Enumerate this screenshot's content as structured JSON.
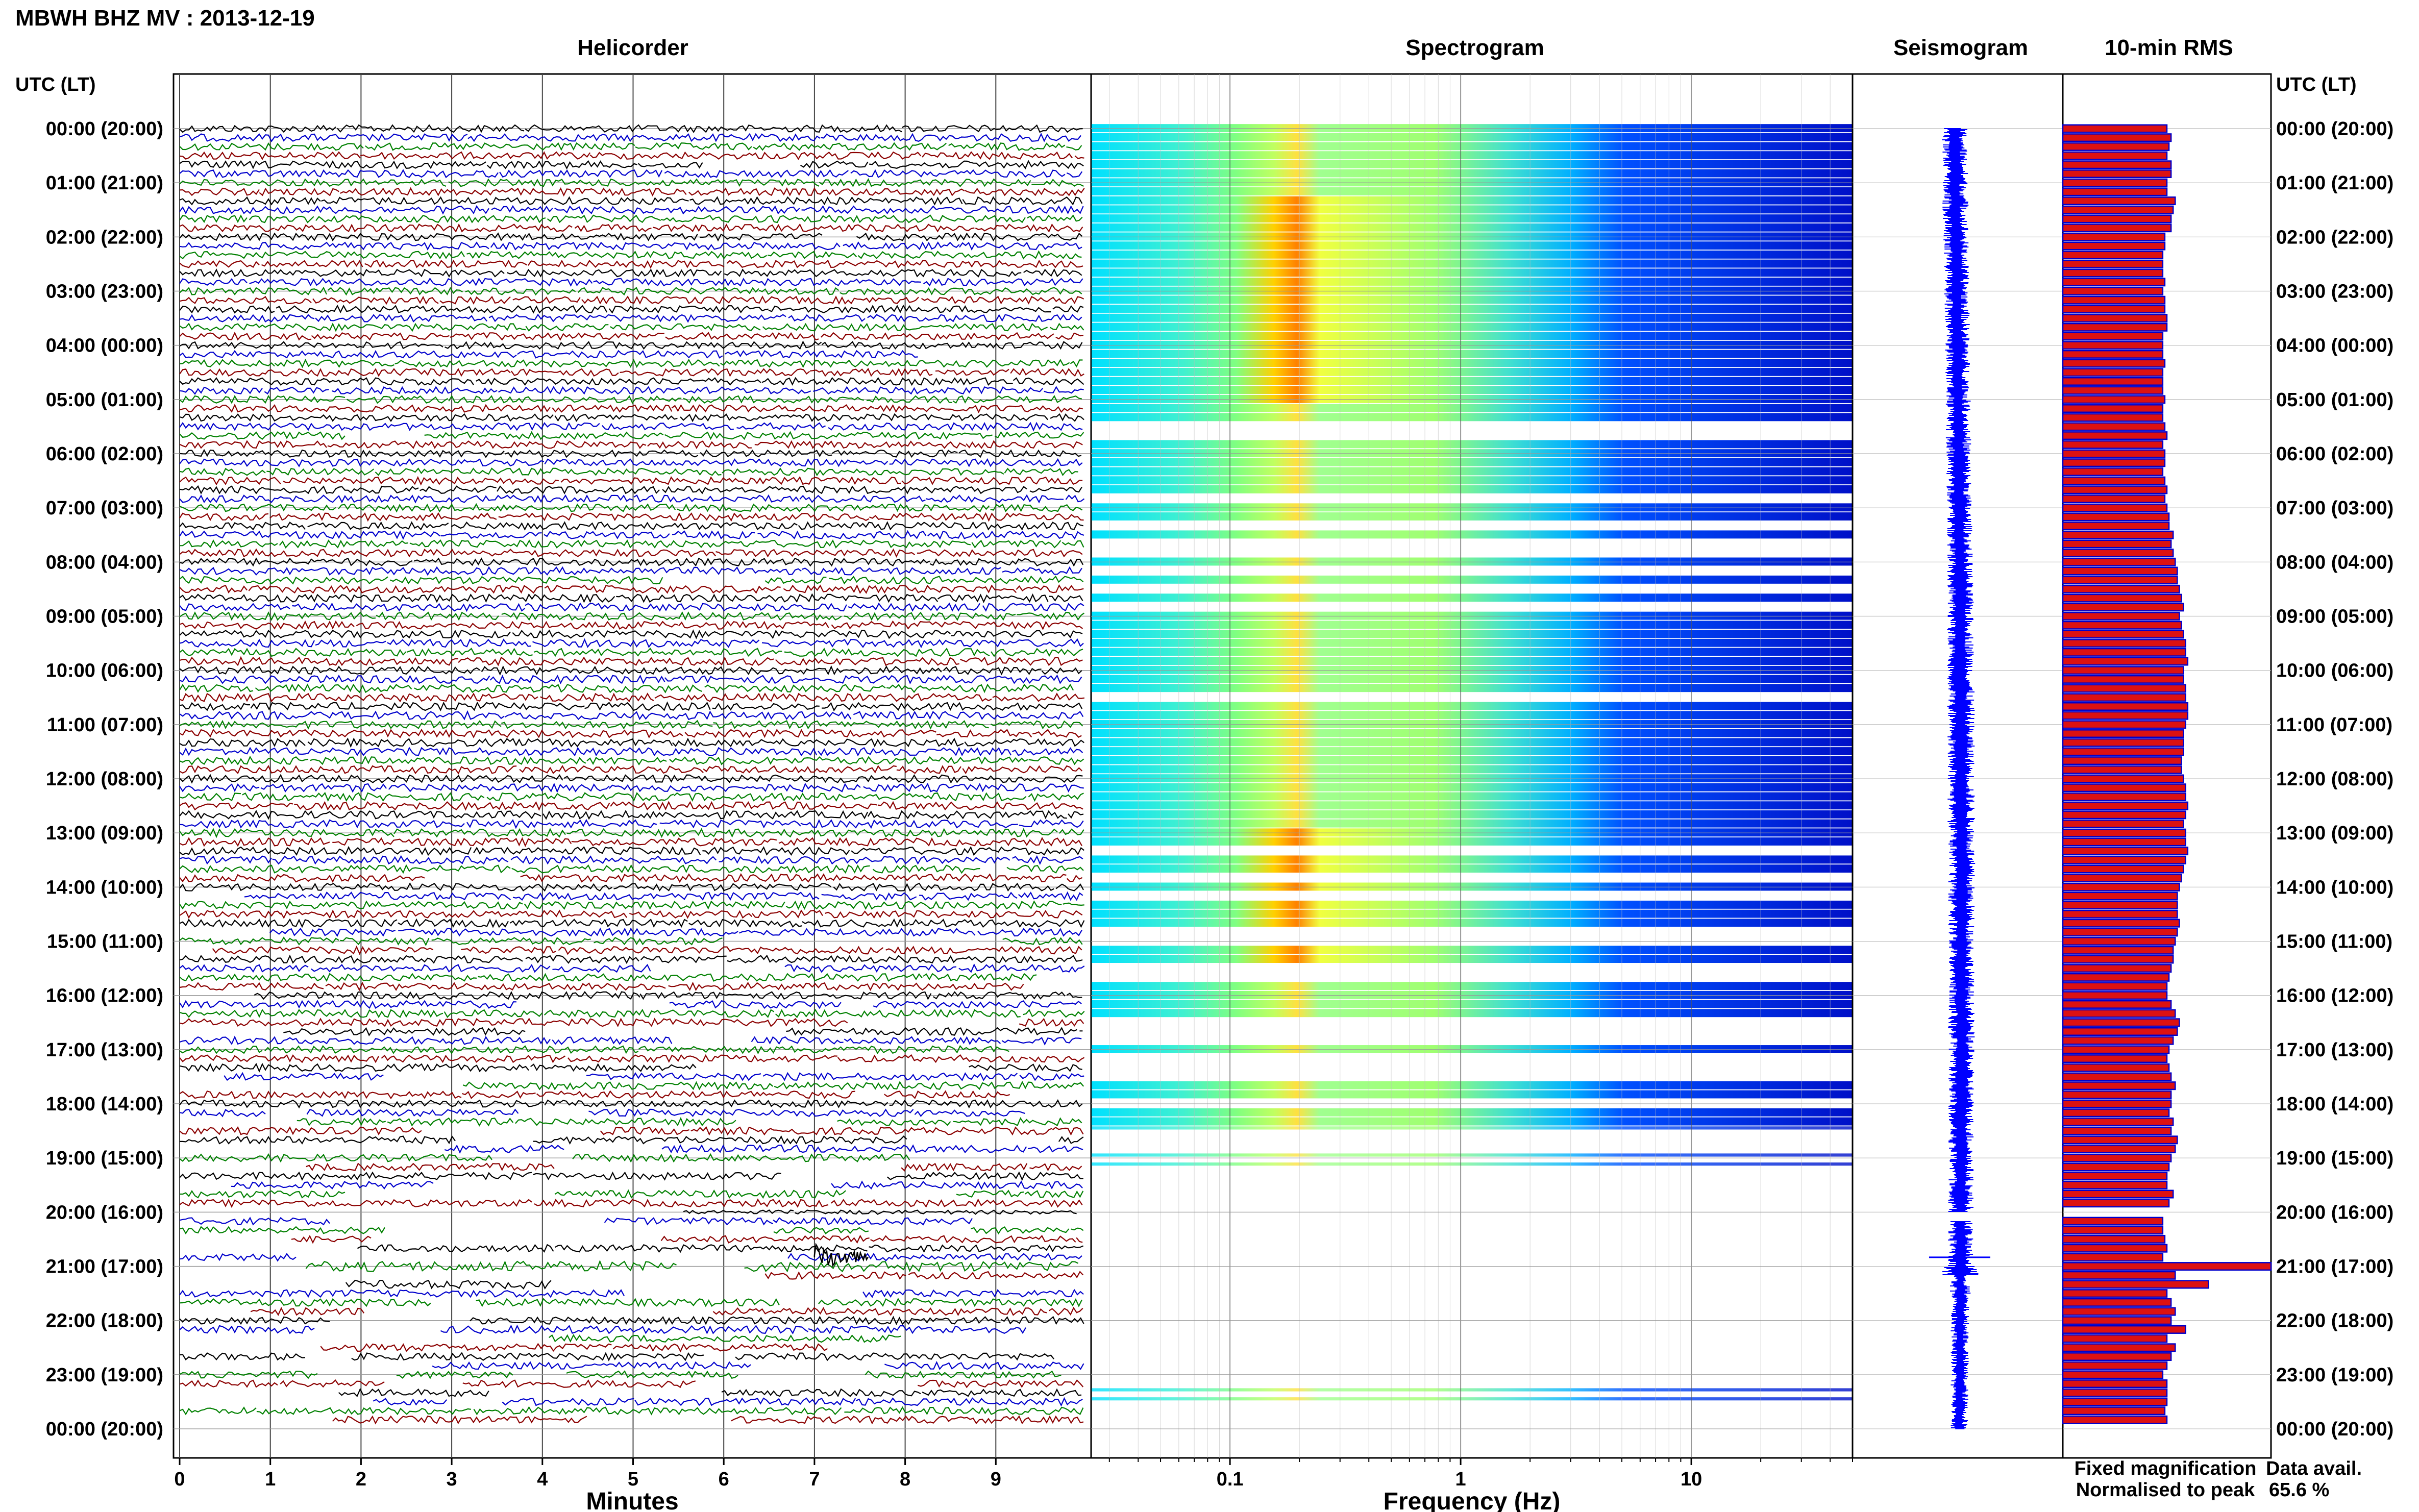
{
  "header": {
    "title": "MBWH BHZ MV : 2013-12-19",
    "utc_lt_left": "UTC (LT)",
    "utc_lt_right": "UTC (LT)"
  },
  "panels": {
    "helicorder": "Helicorder",
    "spectrogram": "Spectrogram",
    "seismogram": "Seismogram",
    "rms": "10-min RMS"
  },
  "time_labels": [
    "00:00 (20:00)",
    "01:00 (21:00)",
    "02:00 (22:00)",
    "03:00 (23:00)",
    "04:00 (00:00)",
    "05:00 (01:00)",
    "06:00 (02:00)",
    "07:00 (03:00)",
    "08:00 (04:00)",
    "09:00 (05:00)",
    "10:00 (06:00)",
    "11:00 (07:00)",
    "12:00 (08:00)",
    "13:00 (09:00)",
    "14:00 (10:00)",
    "15:00 (11:00)",
    "16:00 (12:00)",
    "17:00 (13:00)",
    "18:00 (14:00)",
    "19:00 (15:00)",
    "20:00 (16:00)",
    "21:00 (17:00)",
    "22:00 (18:00)",
    "23:00 (19:00)",
    "00:00 (20:00)"
  ],
  "helicorder_axis": {
    "xlabel": "Minutes",
    "ticks": [
      "0",
      "1",
      "2",
      "3",
      "4",
      "5",
      "6",
      "7",
      "8",
      "9"
    ]
  },
  "spectrogram_axis": {
    "xlabel": "Frequency (Hz)",
    "ticks": [
      "0.1",
      "1",
      "10"
    ],
    "scale": "log",
    "xlim": [
      0.025,
      50
    ]
  },
  "legend": {
    "fixed": "Fixed magnification",
    "normalised": "Normalised to peak",
    "fixed_color": "#0000ff",
    "normalised_color": "#ff0000"
  },
  "availability": {
    "label": "Data avail.",
    "value": "65.6 %"
  },
  "colors": {
    "trace_cycle": [
      "#000000",
      "#0000cc",
      "#008000",
      "#8b0000"
    ],
    "rms_fill": "#dd1111",
    "rms_edge": "#0000cc",
    "seis": "#0000ff"
  },
  "chart_data": [
    {
      "type": "line",
      "title": "Helicorder",
      "xlabel": "Minutes",
      "xlim": [
        0,
        10
      ],
      "rows": 144,
      "row_minutes": 10,
      "note_event": {
        "time": "20:50",
        "minute_range": [
          7.0,
          7.6
        ]
      }
    },
    {
      "type": "heatmap",
      "title": "Spectrogram",
      "xlabel": "Frequency (Hz)",
      "xscale": "log",
      "xlim": [
        0.025,
        50
      ],
      "peak_band_hz": [
        0.18,
        0.22
      ],
      "energy_band_hz": [
        0.15,
        5
      ]
    },
    {
      "type": "line",
      "title": "Seismogram",
      "y_range": [
        "00:00",
        "24:00"
      ]
    },
    {
      "type": "bar",
      "title": "10-min RMS",
      "orientation": "horizontal",
      "xlim": [
        0,
        1
      ],
      "values": [
        0.5,
        0.52,
        0.51,
        0.5,
        0.52,
        0.52,
        0.5,
        0.5,
        0.54,
        0.53,
        0.52,
        0.52,
        0.49,
        0.49,
        0.48,
        0.48,
        0.48,
        0.49,
        0.48,
        0.49,
        0.49,
        0.5,
        0.5,
        0.48,
        0.48,
        0.48,
        0.49,
        0.48,
        0.48,
        0.48,
        0.49,
        0.48,
        0.48,
        0.49,
        0.5,
        0.48,
        0.49,
        0.49,
        0.48,
        0.49,
        0.5,
        0.49,
        0.5,
        0.51,
        0.51,
        0.53,
        0.52,
        0.53,
        0.54,
        0.55,
        0.55,
        0.56,
        0.57,
        0.58,
        0.56,
        0.57,
        0.58,
        0.59,
        0.59,
        0.6,
        0.58,
        0.58,
        0.59,
        0.59,
        0.6,
        0.6,
        0.59,
        0.58,
        0.58,
        0.58,
        0.57,
        0.57,
        0.58,
        0.59,
        0.59,
        0.6,
        0.59,
        0.58,
        0.59,
        0.59,
        0.6,
        0.59,
        0.58,
        0.57,
        0.56,
        0.55,
        0.55,
        0.55,
        0.56,
        0.55,
        0.54,
        0.53,
        0.53,
        0.52,
        0.51,
        0.5,
        0.5,
        0.52,
        0.54,
        0.56,
        0.55,
        0.53,
        0.51,
        0.5,
        0.51,
        0.52,
        0.54,
        0.52,
        0.52,
        0.51,
        0.53,
        0.52,
        0.55,
        0.54,
        0.52,
        0.51,
        0.5,
        0.5,
        0.53,
        0.51,
        null,
        0.48,
        0.48,
        0.49,
        0.5,
        0.48,
        1.0,
        0.54,
        0.7,
        0.5,
        0.52,
        0.54,
        0.52,
        0.59,
        0.5,
        0.54,
        0.52,
        0.5,
        0.48,
        0.5,
        0.5,
        0.5,
        0.49,
        0.5
      ]
    }
  ]
}
